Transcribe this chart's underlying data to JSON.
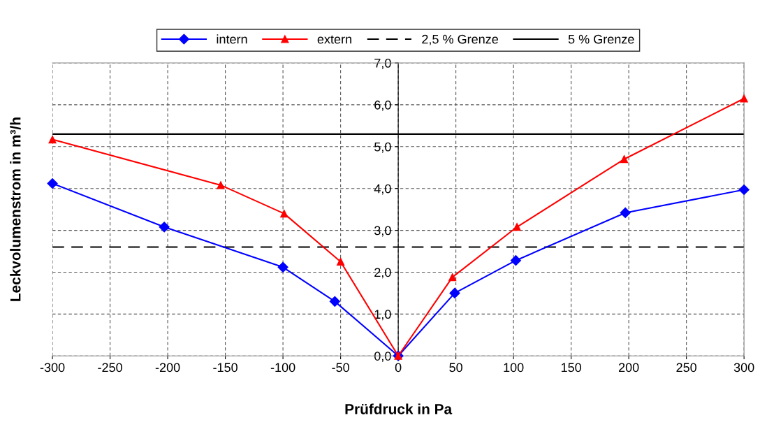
{
  "chart_data": {
    "type": "line",
    "xlabel": "Prüfdruck in Pa",
    "ylabel": "Leckvolumenstrom in m³/h",
    "series": [
      {
        "name": "intern",
        "color": "#0000ff",
        "marker": "diamond",
        "x": [
          -300,
          -203,
          -100,
          -55,
          0,
          49,
          102,
          197,
          300
        ],
        "values": [
          4.12,
          3.08,
          2.12,
          1.3,
          0,
          1.5,
          2.28,
          3.42,
          3.97
        ]
      },
      {
        "name": "extern",
        "color": "#ff0000",
        "marker": "triangle",
        "x": [
          -300,
          -154,
          -99,
          -50,
          0,
          47,
          103,
          196,
          300
        ],
        "values": [
          5.17,
          4.08,
          3.4,
          2.25,
          0,
          1.88,
          3.08,
          4.7,
          6.15
        ]
      }
    ],
    "ref_lines": [
      {
        "axis": "y",
        "value": 2.6,
        "label": "2,5 % Grenze",
        "color": "#000000",
        "line_style": "dashed"
      },
      {
        "axis": "y",
        "value": 5.3,
        "label": "5 % Grenze",
        "color": "#000000",
        "line_style": "solid"
      }
    ],
    "xlim": [
      -300,
      300
    ],
    "xticks": [
      -300,
      -250,
      -200,
      -150,
      -100,
      -50,
      0,
      50,
      100,
      150,
      200,
      250,
      300
    ],
    "ylim": [
      0,
      7
    ],
    "yticks": [
      {
        "value": 0,
        "label": "0,0"
      },
      {
        "value": 1,
        "label": "1,0"
      },
      {
        "value": 2,
        "label": "2,0"
      },
      {
        "value": 3,
        "label": "3,0"
      },
      {
        "value": 4,
        "label": "4,0"
      },
      {
        "value": 5,
        "label": "5,0"
      },
      {
        "value": 6,
        "label": "6,0"
      },
      {
        "value": 7,
        "label": "7,0"
      }
    ],
    "grid": true,
    "legend": "top"
  }
}
